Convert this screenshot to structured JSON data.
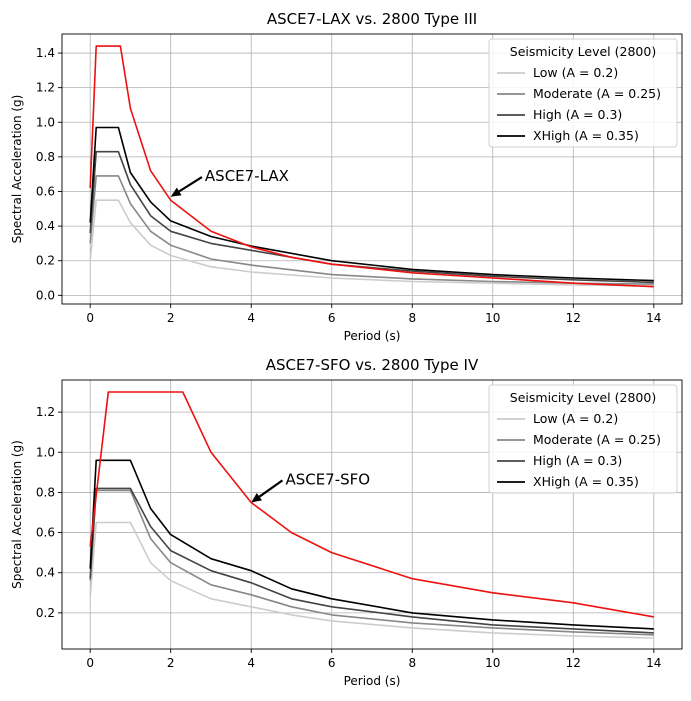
{
  "chart_data": [
    {
      "type": "line",
      "title": "ASCE7-LAX vs. 2800 Type III",
      "xlabel": "Period (s)",
      "ylabel": "Spectral Acceleration (g)",
      "xlim": [
        -0.7,
        14.7
      ],
      "ylim": [
        -0.05,
        1.51
      ],
      "xticks": [
        0,
        2,
        4,
        6,
        8,
        10,
        12,
        14
      ],
      "yticks": [
        0.0,
        0.2,
        0.4,
        0.6,
        0.8,
        1.0,
        1.2,
        1.4
      ],
      "ytick_labels": [
        "0.0",
        "0.2",
        "0.4",
        "0.6",
        "0.8",
        "1.0",
        "1.2",
        "1.4"
      ],
      "grid": true,
      "legend": {
        "title": "Seismicity Level (2800)",
        "placement": "top-right",
        "entries": [
          "Low (A = 0.2)",
          "Moderate (A = 0.25)",
          "High (A = 0.3)",
          "XHigh  (A = 0.35)"
        ]
      },
      "annotation": {
        "text": "ASCE7-LAX",
        "xy": [
          2.0,
          0.57
        ],
        "text_xy": [
          2.85,
          0.66
        ]
      },
      "series": [
        {
          "name": "Low (A = 0.2)",
          "color": "#cccccc",
          "x": [
            0,
            0.15,
            0.7,
            1,
            1.5,
            2,
            3,
            4,
            6,
            8,
            10,
            12,
            14
          ],
          "y": [
            0.2,
            0.55,
            0.55,
            0.42,
            0.29,
            0.23,
            0.165,
            0.135,
            0.1,
            0.08,
            0.07,
            0.06,
            0.055
          ]
        },
        {
          "name": "Moderate (A = 0.25)",
          "color": "#888888",
          "x": [
            0,
            0.15,
            0.7,
            1,
            1.5,
            2,
            3,
            4,
            6,
            8,
            10,
            12,
            14
          ],
          "y": [
            0.3,
            0.69,
            0.69,
            0.53,
            0.37,
            0.29,
            0.21,
            0.175,
            0.12,
            0.095,
            0.08,
            0.07,
            0.065
          ]
        },
        {
          "name": "High (A = 0.3)",
          "color": "#444444",
          "x": [
            0,
            0.15,
            0.7,
            1,
            1.5,
            2,
            3,
            4,
            6,
            8,
            10,
            12,
            14
          ],
          "y": [
            0.36,
            0.83,
            0.83,
            0.64,
            0.46,
            0.37,
            0.3,
            0.26,
            0.18,
            0.14,
            0.11,
            0.09,
            0.075
          ]
        },
        {
          "name": "XHigh  (A = 0.35)",
          "color": "#000000",
          "x": [
            0,
            0.15,
            0.7,
            1,
            1.5,
            2,
            3,
            4,
            6,
            8,
            10,
            12,
            14
          ],
          "y": [
            0.42,
            0.97,
            0.97,
            0.71,
            0.54,
            0.43,
            0.34,
            0.285,
            0.2,
            0.15,
            0.12,
            0.1,
            0.085
          ]
        },
        {
          "name": "",
          "color": "#ee1111",
          "x": [
            0,
            0.15,
            0.75,
            1,
            1.5,
            2,
            3,
            4,
            5,
            6,
            8,
            10,
            12,
            14
          ],
          "y": [
            0.62,
            1.44,
            1.44,
            1.08,
            0.72,
            0.55,
            0.37,
            0.28,
            0.22,
            0.18,
            0.13,
            0.1,
            0.07,
            0.05
          ]
        }
      ]
    },
    {
      "type": "line",
      "title": "ASCE7-SFO vs. 2800 Type IV",
      "xlabel": "Period (s)",
      "ylabel": "Spectral Acceleration (g)",
      "xlim": [
        -0.7,
        14.7
      ],
      "ylim": [
        0.02,
        1.36
      ],
      "xticks": [
        0,
        2,
        4,
        6,
        8,
        10,
        12,
        14
      ],
      "yticks": [
        0.2,
        0.4,
        0.6,
        0.8,
        1.0,
        1.2
      ],
      "ytick_labels": [
        "0.2",
        "0.4",
        "0.6",
        "0.8",
        "1.0",
        "1.2"
      ],
      "grid": true,
      "legend": {
        "title": "Seismicity Level (2800)",
        "placement": "top-right",
        "entries": [
          "Low (A = 0.2)",
          "Moderate (A = 0.25)",
          "High (A = 0.3)",
          "XHigh  (A = 0.35)"
        ]
      },
      "annotation": {
        "text": "ASCE7-SFO",
        "xy": [
          4.0,
          0.75
        ],
        "text_xy": [
          4.85,
          0.84
        ]
      },
      "series": [
        {
          "name": "Low (A = 0.2)",
          "color": "#cccccc",
          "x": [
            0,
            0.15,
            1,
            1.5,
            2,
            3,
            4,
            5,
            6,
            8,
            10,
            12,
            14
          ],
          "y": [
            0.28,
            0.65,
            0.65,
            0.45,
            0.36,
            0.27,
            0.23,
            0.19,
            0.16,
            0.125,
            0.1,
            0.085,
            0.075
          ]
        },
        {
          "name": "Moderate (A = 0.25)",
          "color": "#888888",
          "x": [
            0,
            0.15,
            1,
            1.5,
            2,
            3,
            4,
            5,
            6,
            8,
            10,
            12,
            14
          ],
          "y": [
            0.36,
            0.81,
            0.81,
            0.57,
            0.45,
            0.34,
            0.29,
            0.23,
            0.19,
            0.15,
            0.125,
            0.105,
            0.09
          ]
        },
        {
          "name": "High (A = 0.3)",
          "color": "#444444",
          "x": [
            0,
            0.15,
            1,
            1.5,
            2,
            3,
            4,
            5,
            6,
            8,
            10,
            12,
            14
          ],
          "y": [
            0.37,
            0.82,
            0.82,
            0.63,
            0.51,
            0.41,
            0.35,
            0.27,
            0.23,
            0.18,
            0.14,
            0.12,
            0.1
          ]
        },
        {
          "name": "XHigh  (A = 0.35)",
          "color": "#000000",
          "x": [
            0,
            0.15,
            1,
            1.5,
            2,
            3,
            4,
            5,
            6,
            8,
            10,
            12,
            14
          ],
          "y": [
            0.42,
            0.96,
            0.96,
            0.72,
            0.59,
            0.47,
            0.41,
            0.32,
            0.27,
            0.2,
            0.165,
            0.14,
            0.12
          ]
        },
        {
          "name": "",
          "color": "#ee1111",
          "x": [
            0,
            0.45,
            2.3,
            3,
            4,
            5,
            6,
            8,
            10,
            12,
            14
          ],
          "y": [
            0.53,
            1.3,
            1.3,
            1.0,
            0.75,
            0.6,
            0.5,
            0.37,
            0.3,
            0.25,
            0.18
          ]
        }
      ]
    }
  ]
}
